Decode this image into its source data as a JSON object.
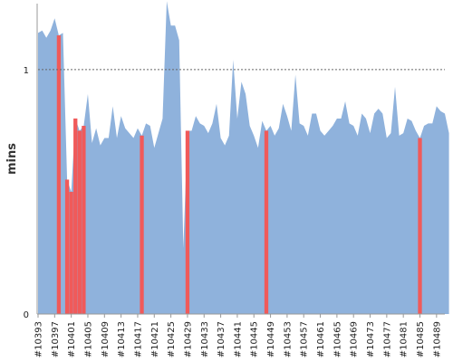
{
  "chart_data": {
    "type": "area",
    "title": "",
    "xlabel": "",
    "ylabel": "mins",
    "ylim": [
      0,
      1.27
    ],
    "yticks": [
      0,
      1
    ],
    "reference_line": {
      "value": 1,
      "style": "dotted"
    },
    "x_tick_labels": [
      "#10393",
      "#10397",
      "#10401",
      "#10405",
      "#10409",
      "#10413",
      "#10417",
      "#10421",
      "#10425",
      "#10429",
      "#10433",
      "#10437",
      "#10441",
      "#10445",
      "#10449",
      "#10453",
      "#10457",
      "#10461",
      "#10465",
      "#10469",
      "#10473",
      "#10477",
      "#10481",
      "#10485",
      "#10489"
    ],
    "x_start": 10393,
    "x_end": 10491,
    "colors": {
      "normal": "#8fb2dc",
      "failed": "#f05a5a",
      "refline": "#666666"
    },
    "series": [
      {
        "values": [
          1.15,
          1.16,
          1.13,
          1.16,
          1.21,
          1.14,
          1.15,
          0.55,
          0.5,
          0.8,
          0.75,
          0.77,
          0.9,
          0.7,
          0.76,
          0.69,
          0.72,
          0.72,
          0.85,
          0.72,
          0.81,
          0.76,
          0.74,
          0.72,
          0.76,
          0.73,
          0.78,
          0.77,
          0.68,
          0.74,
          0.8,
          1.28,
          1.18,
          1.18,
          1.12,
          0.27,
          0.75,
          0.75,
          0.81,
          0.78,
          0.77,
          0.74,
          0.78,
          0.86,
          0.72,
          0.69,
          0.73,
          1.04,
          0.8,
          0.95,
          0.9,
          0.77,
          0.73,
          0.68,
          0.79,
          0.75,
          0.77,
          0.73,
          0.76,
          0.86,
          0.81,
          0.75,
          0.98,
          0.78,
          0.77,
          0.73,
          0.82,
          0.82,
          0.75,
          0.73,
          0.75,
          0.77,
          0.8,
          0.8,
          0.87,
          0.78,
          0.77,
          0.73,
          0.82,
          0.8,
          0.74,
          0.82,
          0.84,
          0.82,
          0.72,
          0.74,
          0.93,
          0.73,
          0.74,
          0.8,
          0.79,
          0.75,
          0.72,
          0.77,
          0.78,
          0.78,
          0.85,
          0.83,
          0.82,
          0.74
        ],
        "failed_indices": [
          5,
          7,
          8,
          9,
          10,
          11,
          25,
          36,
          55,
          92
        ]
      }
    ],
    "grid": false
  }
}
